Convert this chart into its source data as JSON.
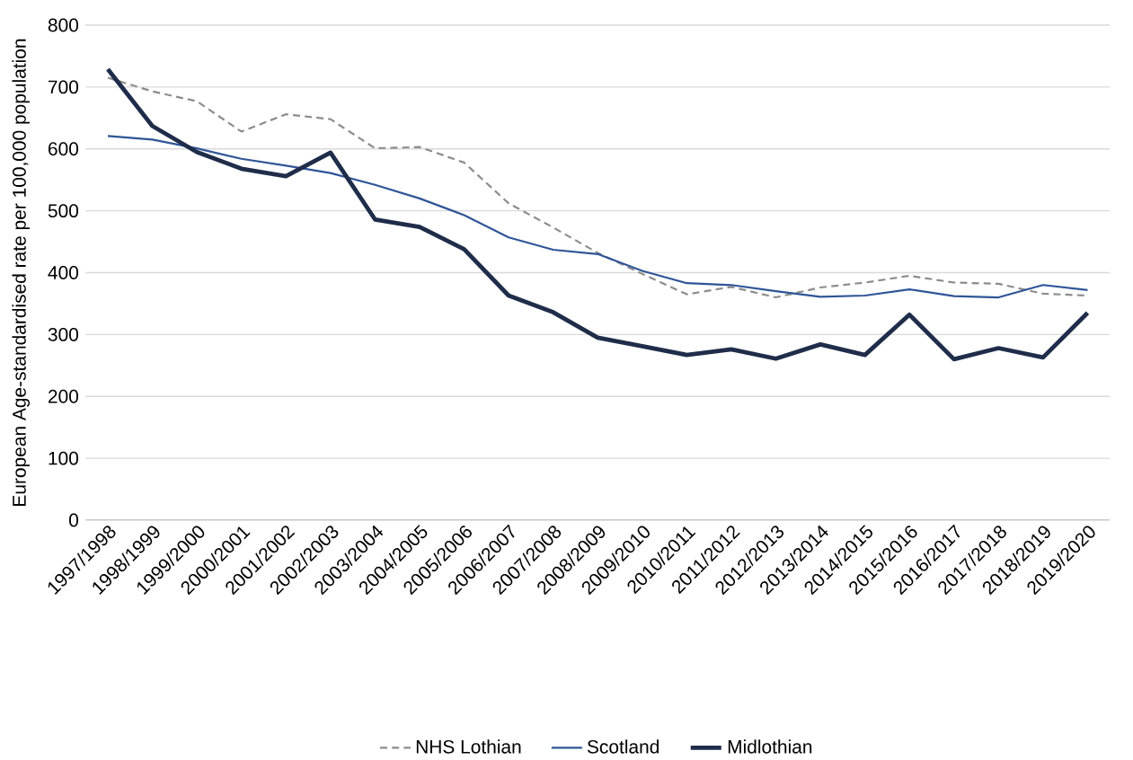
{
  "chart_data": {
    "type": "line",
    "ylabel": "European Age-standardised rate per 100,000 population",
    "categories": [
      "1997/1998",
      "1998/1999",
      "1999/2000",
      "2000/2001",
      "2001/2002",
      "2002/2003",
      "2003/2004",
      "2004/2005",
      "2005/2006",
      "2006/2007",
      "2007/2008",
      "2008/2009",
      "2009/2010",
      "2010/2011",
      "2011/2012",
      "2012/2013",
      "2013/2014",
      "2014/2015",
      "2015/2016",
      "2016/2017",
      "2017/2018",
      "2018/2019",
      "2019/2020"
    ],
    "series": [
      {
        "name": "NHS Lothian",
        "color": "#8c8c8c",
        "line_style": "dashed",
        "values": [
          715,
          693,
          677,
          628,
          656,
          648,
          601,
          603,
          578,
          512,
          473,
          432,
          398,
          365,
          377,
          360,
          376,
          384,
          395,
          384,
          382,
          366,
          363
        ]
      },
      {
        "name": "Scotland",
        "color": "#2f5597",
        "line_style": "solid",
        "values": [
          621,
          615,
          601,
          584,
          573,
          561,
          542,
          520,
          493,
          457,
          437,
          430,
          403,
          383,
          380,
          370,
          361,
          363,
          373,
          362,
          360,
          380,
          372
        ]
      },
      {
        "name": "Midlothian",
        "color": "#1f2d4a",
        "line_style": "solid",
        "values": [
          729,
          637,
          595,
          568,
          556,
          594,
          486,
          474,
          438,
          363,
          336,
          295,
          281,
          267,
          276,
          261,
          284,
          267,
          332,
          260,
          278,
          263,
          335
        ]
      }
    ],
    "ylim": [
      0,
      800
    ],
    "yticks": [
      0,
      100,
      200,
      300,
      400,
      500,
      600,
      700,
      800
    ],
    "grid": "y",
    "legend": "bottom",
    "marker": "none"
  }
}
